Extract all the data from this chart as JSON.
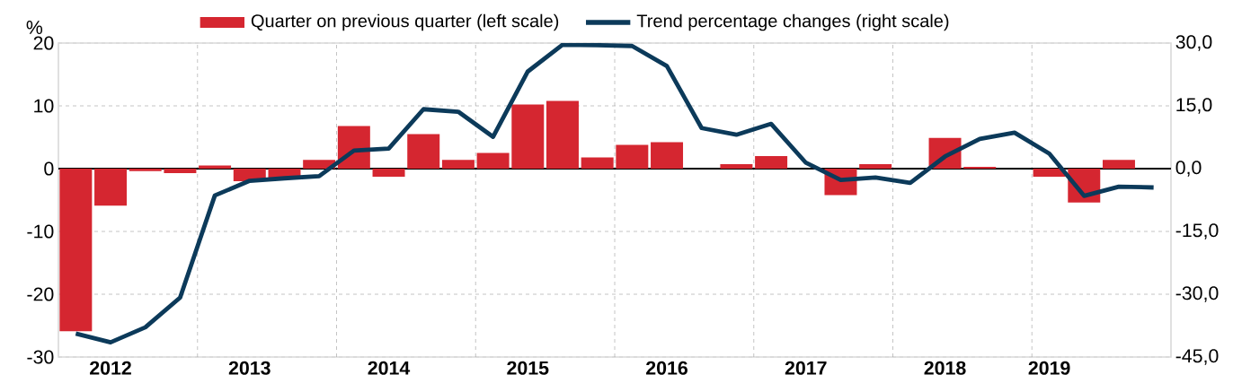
{
  "chart_data": {
    "type": "bar",
    "ylabel": "%",
    "categories": [
      null,
      "2012",
      null,
      null,
      null,
      "2013",
      null,
      null,
      null,
      "2014",
      null,
      null,
      null,
      "2015",
      null,
      null,
      null,
      "2016",
      null,
      null,
      null,
      "2017",
      null,
      null,
      null,
      "2018",
      null,
      null,
      "2019",
      null,
      null,
      null
    ],
    "series": [
      {
        "name": "Quarter on previous quarter (left scale)",
        "color": "#d52630",
        "values": [
          -25.9,
          -5.9,
          -0.4,
          -0.7,
          0.5,
          -2.0,
          -1.7,
          1.4,
          6.8,
          -1.3,
          5.5,
          1.4,
          2.5,
          10.2,
          10.8,
          1.8,
          3.8,
          4.2,
          0,
          0.7,
          2.0,
          0,
          -4.2,
          0.7,
          0,
          4.9,
          0.3,
          0,
          -1.3,
          -5.4,
          1.4,
          0
        ]
      },
      {
        "name": "Trend percentage changes (right scale)",
        "type": "line",
        "axis": "y2",
        "color": "#0c3a5a",
        "values": [
          -39.4,
          -41.5,
          -37.9,
          -30.8,
          -6.4,
          -2.9,
          -2.3,
          -1.8,
          4.3,
          4.8,
          14.2,
          13.6,
          7.6,
          23.2,
          29.6,
          29.5,
          29.3,
          24.5,
          9.7,
          8.1,
          10.7,
          1.4,
          -2.7,
          -2.1,
          -3.4,
          2.9,
          7.1,
          8.6,
          3.6,
          -6.5,
          -4.3,
          -4.5
        ]
      }
    ],
    "ylim": [
      -30,
      20
    ],
    "yticks": [
      -30,
      -20,
      -10,
      0,
      10,
      20
    ],
    "y2lim": [
      -45,
      30
    ],
    "y2ticks": [
      {
        "value": -45,
        "label": "-45,0"
      },
      {
        "value": -30,
        "label": "-30,0"
      },
      {
        "value": -15,
        "label": "-15,0"
      },
      {
        "value": 0,
        "label": "0,0"
      },
      {
        "value": 15,
        "label": "15,0"
      },
      {
        "value": 30,
        "label": "30,0"
      }
    ],
    "grid": true,
    "legend": "top"
  }
}
